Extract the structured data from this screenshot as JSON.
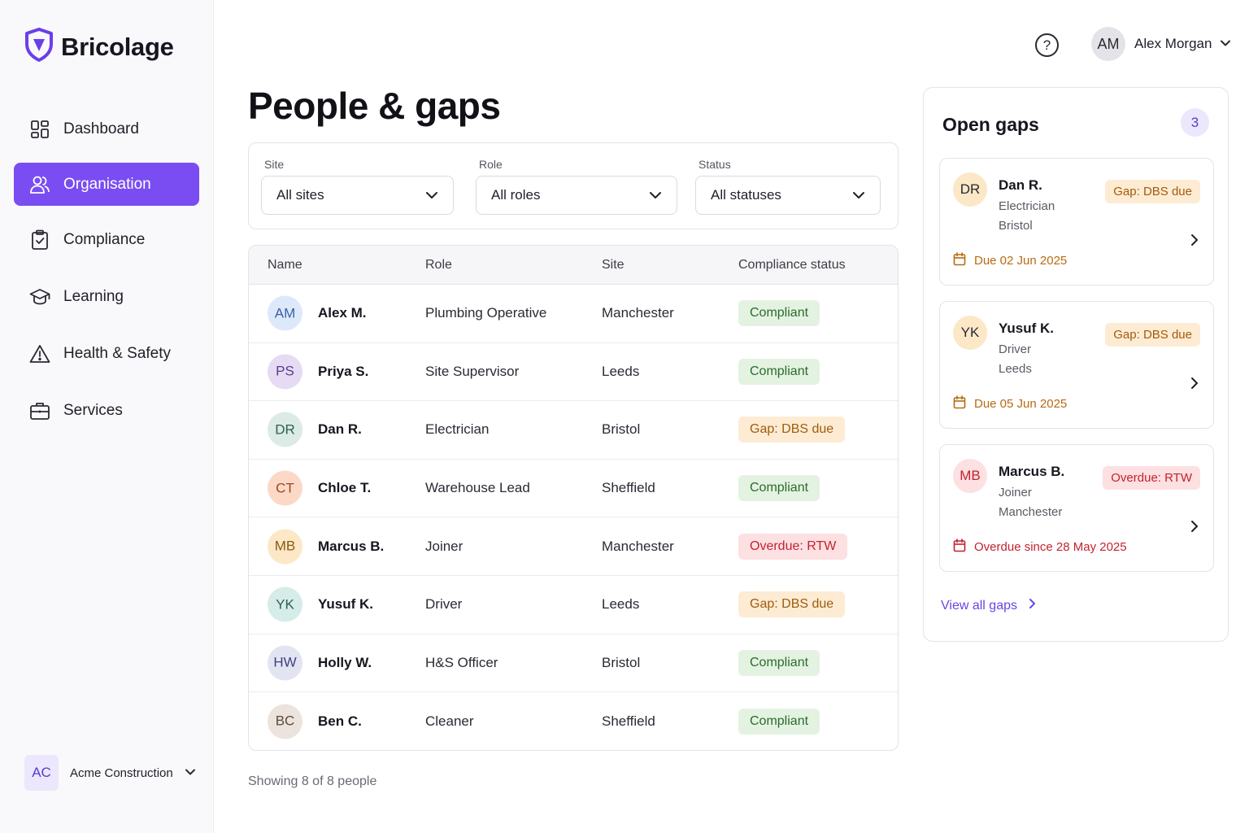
{
  "brand": {
    "name": "Bricolage",
    "accent": "#7a4df2"
  },
  "sidebar": {
    "items": [
      {
        "label": "Dashboard",
        "icon": "grid-icon",
        "active": false
      },
      {
        "label": "Organisation",
        "icon": "users-icon",
        "active": true
      },
      {
        "label": "Compliance",
        "icon": "clipboard-check-icon",
        "active": false
      },
      {
        "label": "Learning",
        "icon": "graduation-cap-icon",
        "active": false
      },
      {
        "label": "Health & Safety",
        "icon": "warning-triangle-icon",
        "active": false
      },
      {
        "label": "Services",
        "icon": "briefcase-icon",
        "active": false
      }
    ],
    "org": {
      "initials": "AC",
      "name": "Acme Construction"
    }
  },
  "header": {
    "help_icon": "help-circle-icon",
    "user": {
      "initials": "AM",
      "name": "Alex Morgan"
    }
  },
  "main": {
    "title": "People & gaps",
    "filters": {
      "site": {
        "label": "Site",
        "value": "All sites"
      },
      "role": {
        "label": "Role",
        "value": "All roles"
      },
      "status": {
        "label": "Status",
        "value": "All statuses"
      }
    },
    "table": {
      "headers": [
        "Name",
        "Role",
        "Site",
        "Compliance status"
      ],
      "rows": [
        {
          "initials": "AM",
          "name": "Alex M.",
          "role": "Plumbing Operative",
          "site": "Manchester",
          "status": "Compliant",
          "status_type": "compliant"
        },
        {
          "initials": "PS",
          "name": "Priya S.",
          "role": "Site Supervisor",
          "site": "Leeds",
          "status": "Compliant",
          "status_type": "compliant"
        },
        {
          "initials": "DR",
          "name": "Dan R.",
          "role": "Electrician",
          "site": "Bristol",
          "status": "Gap: DBS due",
          "status_type": "gap"
        },
        {
          "initials": "CT",
          "name": "Chloe T.",
          "role": "Warehouse Lead",
          "site": "Sheffield",
          "status": "Compliant",
          "status_type": "compliant"
        },
        {
          "initials": "MB",
          "name": "Marcus B.",
          "role": "Joiner",
          "site": "Manchester",
          "status": "Overdue: RTW",
          "status_type": "overdue"
        },
        {
          "initials": "YK",
          "name": "Yusuf K.",
          "role": "Driver",
          "site": "Leeds",
          "status": "Gap: DBS due",
          "status_type": "gap"
        },
        {
          "initials": "HW",
          "name": "Holly W.",
          "role": "H&S Officer",
          "site": "Bristol",
          "status": "Compliant",
          "status_type": "compliant"
        },
        {
          "initials": "BC",
          "name": "Ben C.",
          "role": "Cleaner",
          "site": "Sheffield",
          "status": "Compliant",
          "status_type": "compliant"
        }
      ]
    },
    "footer": "Showing 8 of 8 people"
  },
  "gaps": {
    "title": "Open gaps",
    "count": "3",
    "items": [
      {
        "initials": "DR",
        "name": "Dan R.",
        "role": "Electrician",
        "site": "Bristol",
        "badge": "Gap: DBS due",
        "type": "gap",
        "due": "Due 02 Jun 2025"
      },
      {
        "initials": "YK",
        "name": "Yusuf K.",
        "role": "Driver",
        "site": "Leeds",
        "badge": "Gap: DBS due",
        "type": "gap",
        "due": "Due 05 Jun 2025"
      },
      {
        "initials": "MB",
        "name": "Marcus B.",
        "role": "Joiner",
        "site": "Manchester",
        "badge": "Overdue: RTW",
        "type": "overdue",
        "due": "Overdue since 28 May 2025"
      }
    ],
    "view_all": "View all gaps"
  },
  "colors": {
    "compliant": "#2b6b2c",
    "gap": "#a05b0d",
    "overdue": "#c22330",
    "avatar_AM": "#dde9fb",
    "avatar_PS": "#e6dbf3",
    "avatar_DR": "#dcebe6",
    "avatar_CT": "#fbd9c6",
    "avatar_MB": "#fce8c6",
    "avatar_YK": "#d6ece8",
    "avatar_HW": "#e3e4f2",
    "avatar_BC": "#ece4dc"
  }
}
